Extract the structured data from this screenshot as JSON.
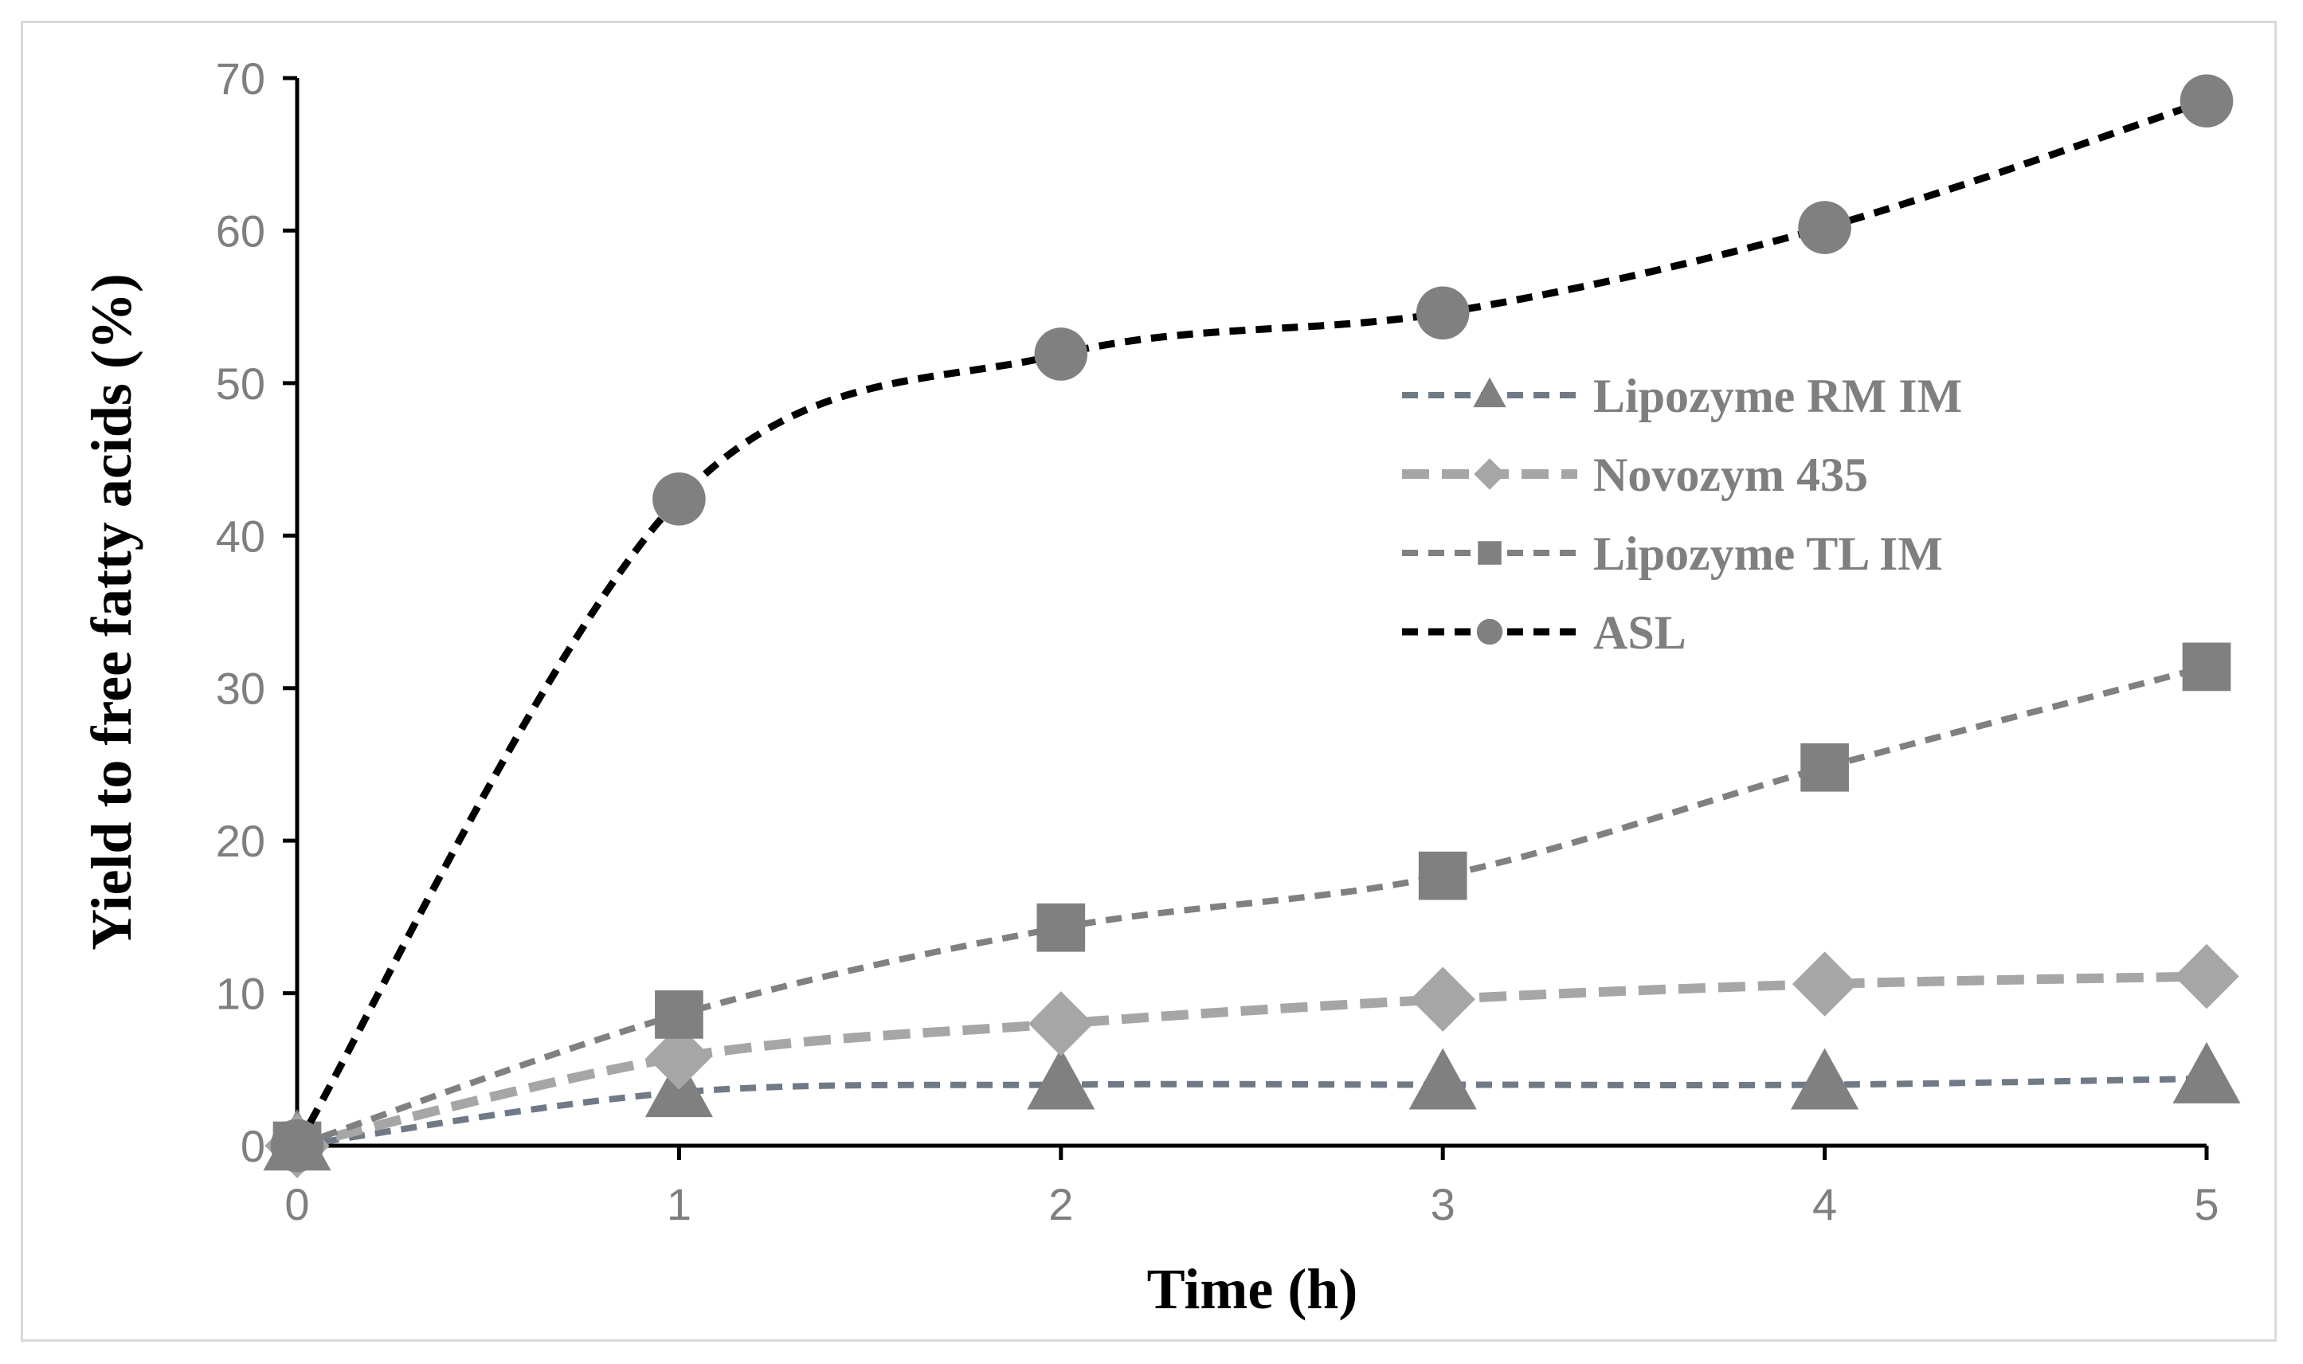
{
  "chart_data": {
    "type": "line",
    "title": "",
    "xlabel": "Time (h)",
    "ylabel": "Yield to free fatty acids (%)",
    "xlim": [
      0,
      5
    ],
    "ylim": [
      0,
      70
    ],
    "x_ticks": [
      "0",
      "1",
      "2",
      "3",
      "4",
      "5"
    ],
    "y_ticks": [
      "0",
      "10",
      "20",
      "30",
      "40",
      "50",
      "60",
      "70"
    ],
    "grid": false,
    "legend_position": "right-center",
    "x": [
      0,
      1,
      2,
      3,
      4,
      5
    ],
    "series": [
      {
        "name": "Lipozyme RM IM",
        "values": [
          0,
          3.5,
          4,
          4,
          4,
          4.4
        ],
        "color": "#6f7a86",
        "marker": "triangle",
        "marker_color": "#808080",
        "dash": "short"
      },
      {
        "name": "Novozym 435",
        "values": [
          0,
          5.8,
          8,
          9.6,
          10.6,
          11.1
        ],
        "color": "#a6a6a6",
        "marker": "diamond",
        "marker_color": "#a6a6a6",
        "dash": "long"
      },
      {
        "name": "Lipozyme TL IM",
        "values": [
          0,
          8.6,
          14.3,
          17.7,
          24.8,
          31.4
        ],
        "color": "#808080",
        "marker": "square",
        "marker_color": "#808080",
        "dash": "short"
      },
      {
        "name": "ASL",
        "values": [
          0,
          42.4,
          51.9,
          54.6,
          60.2,
          68.5
        ],
        "color": "#000000",
        "marker": "circle",
        "marker_color": "#808080",
        "dash": "short"
      }
    ]
  }
}
